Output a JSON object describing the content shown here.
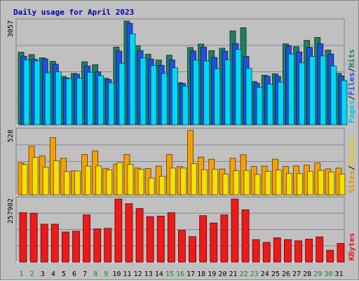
{
  "chart_data": {
    "type": "bar",
    "title": "Daily usage for April 2023",
    "categories": [
      "1",
      "2",
      "3",
      "4",
      "5",
      "6",
      "7",
      "8",
      "9",
      "10",
      "11",
      "12",
      "13",
      "14",
      "15",
      "16",
      "17",
      "18",
      "19",
      "20",
      "21",
      "22",
      "23",
      "24",
      "25",
      "26",
      "27",
      "28",
      "29",
      "30",
      "31"
    ],
    "weekend_days": [
      "1",
      "2",
      "8",
      "9",
      "15",
      "16",
      "22",
      "23",
      "29",
      "30"
    ],
    "panels": [
      {
        "id": "pages-files-hits",
        "ymax": 3057,
        "ymax_label": "3057",
        "legend": [
          "Pages",
          "/",
          "Files",
          "/",
          "Hits"
        ],
        "series": [
          {
            "name": "Hits",
            "color": "#1e8060",
            "values": [
              2136,
              2070,
              1970,
              1867,
              1427,
              1510,
              1857,
              1770,
              1369,
              2290,
              3057,
              2326,
              2079,
              1907,
              2050,
              1237,
              2276,
              2378,
              2184,
              2255,
              2765,
              2860,
              1276,
              1460,
              1500,
              2387,
              2301,
              2486,
              2573,
              2201,
              1517
            ]
          },
          {
            "name": "Files",
            "color": "#2050e0",
            "values": [
              2021,
              1932,
              1942,
              1783,
              1383,
              1492,
              1729,
              1560,
              1331,
              2170,
              2985,
              2183,
              1935,
              1751,
              1910,
              1218,
              2173,
              2288,
              1983,
              2169,
              2394,
              2011,
              1225,
              1431,
              1431,
              2326,
              2146,
              2281,
              2385,
              2085,
              1437
            ]
          },
          {
            "name": "Pages",
            "color": "#00d8f8",
            "values": [
              1912,
              1877,
              1525,
              1562,
              1356,
              1373,
              1545,
              1446,
              1235,
              1811,
              2683,
              1967,
              1745,
              1509,
              1677,
              1134,
              1904,
              1881,
              1648,
              1912,
              2220,
              1665,
              1104,
              1193,
              1256,
              2084,
              1824,
              2013,
              2027,
              1731,
              1301
            ]
          }
        ]
      },
      {
        "id": "sites-visits",
        "ymax": 528,
        "ymax_label": "528",
        "legend": [
          "Sites",
          "/",
          "Visits"
        ],
        "series": [
          {
            "name": "Visits",
            "color": "#f8a000",
            "values": [
              262,
              397,
              319,
              468,
              299,
              196,
              330,
              360,
              217,
              251,
              330,
              219,
              216,
              235,
              330,
              231,
              528,
              309,
              292,
              212,
              299,
              328,
              232,
              235,
              292,
              232,
              237,
              244,
              260,
              213,
              219
            ]
          },
          {
            "name": "Sites",
            "color": "#f8e000",
            "values": [
              248,
              306,
              227,
              278,
              191,
              195,
              235,
              236,
              203,
              264,
              249,
              208,
              138,
              152,
              219,
              219,
              255,
              205,
              208,
              170,
              197,
              199,
              167,
              192,
              203,
              175,
              174,
              193,
              200,
              187,
              169
            ]
          }
        ]
      },
      {
        "id": "kbytes",
        "ymax": 257902,
        "ymax_label": "257902",
        "legend": [
          "KBytes"
        ],
        "series": [
          {
            "name": "KBytes",
            "color": "#f01818",
            "values": [
              201940,
              200002,
              154994,
              155002,
              123100,
              126500,
              193000,
              136000,
              138000,
              257902,
              238900,
              219002,
              186000,
              188000,
              202000,
              130000,
              104000,
              190000,
              160000,
              193000,
              257902,
              214000,
              92000,
              80500,
              99400,
              92000,
              87000,
              94000,
              103000,
              48500,
              76500
            ]
          }
        ]
      }
    ]
  }
}
